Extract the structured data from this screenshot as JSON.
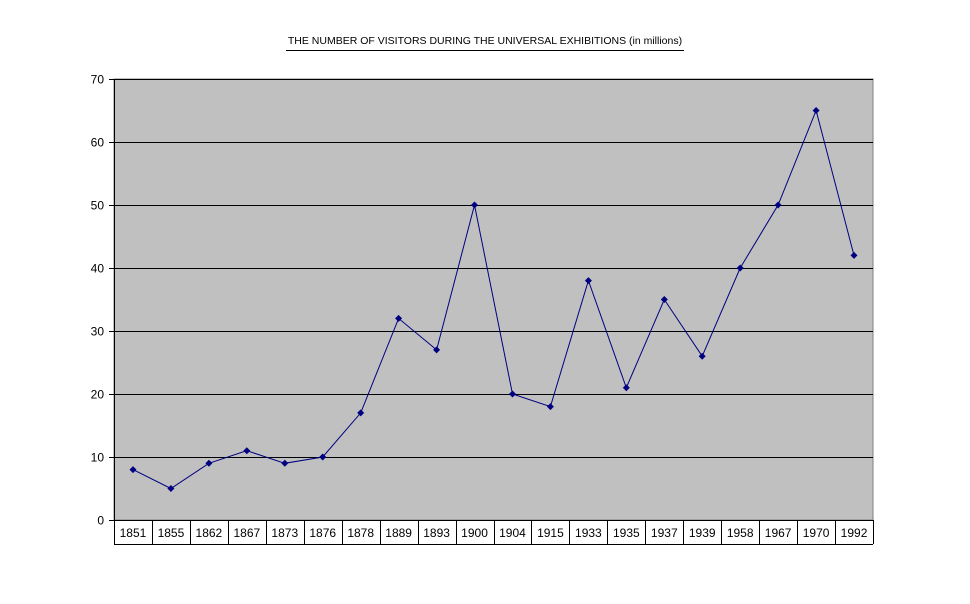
{
  "chart_data": {
    "type": "line",
    "title": "THE NUMBER OF VISITORS DURING THE UNIVERSAL EXHIBITIONS    (in millions)",
    "xlabel": "",
    "ylabel": "",
    "categories": [
      "1851",
      "1855",
      "1862",
      "1867",
      "1873",
      "1876",
      "1878",
      "1889",
      "1893",
      "1900",
      "1904",
      "1915",
      "1933",
      "1935",
      "1937",
      "1939",
      "1958",
      "1967",
      "1970",
      "1992"
    ],
    "series": [
      {
        "values": [
          8,
          5,
          9,
          11,
          9,
          10,
          17,
          32,
          27,
          50,
          20,
          18,
          38,
          21,
          35,
          26,
          40,
          50,
          65,
          42
        ]
      }
    ],
    "ylim": [
      0,
      70
    ],
    "yticks": [
      0,
      10,
      20,
      30,
      40,
      50,
      60,
      70
    ],
    "grid": "horizontal",
    "legend": "none",
    "colors": {
      "plot_background": "#c0c0c0",
      "line": "#000080",
      "marker": "#000080",
      "gridline": "#000000"
    }
  }
}
